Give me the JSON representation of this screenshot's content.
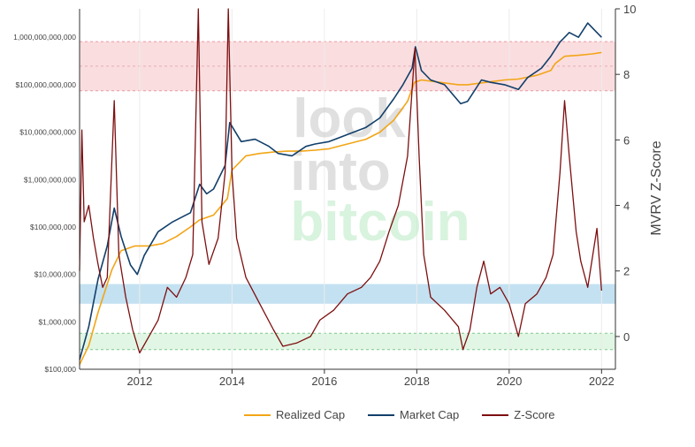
{
  "chart_data": {
    "type": "line",
    "title": "",
    "watermark": "look into bitcoin",
    "x_ticks": [
      "2012",
      "2014",
      "2016",
      "2018",
      "2020",
      "2022"
    ],
    "y_left_ticks": [
      "$100,000",
      "$1,000,000",
      "$10,000,000",
      "$100,000,000",
      "$1,000,000,000",
      "$10,000,000,000",
      "$100,000,000,000",
      "1,000,000,000,000"
    ],
    "y_right_ticks": [
      "0",
      "2",
      "4",
      "6",
      "8",
      "10"
    ],
    "y_right_label": "MVRV Z-Score",
    "x_range": [
      2010.7,
      2022.3
    ],
    "y_left_log_range": [
      5,
      12.6
    ],
    "y_right_range": [
      -1,
      10
    ],
    "bands": [
      {
        "name": "top",
        "range": [
          7.5,
          9.0
        ],
        "color": "#f9d7d9"
      },
      {
        "name": "middle",
        "range": [
          1.0,
          1.6
        ],
        "color": "#b9dcee"
      },
      {
        "name": "bottom",
        "range": [
          -0.4,
          0.1
        ],
        "color": "#dcf5df"
      }
    ],
    "series": [
      {
        "name": "Realized Cap",
        "axis": "left",
        "color": "#f2a516",
        "x": [
          2010.7,
          2010.9,
          2011.1,
          2011.4,
          2011.6,
          2011.9,
          2012.2,
          2012.5,
          2012.8,
          2013.1,
          2013.3,
          2013.6,
          2013.9,
          2014.0,
          2014.3,
          2014.6,
          2014.9,
          2015.2,
          2015.5,
          2015.8,
          2016.1,
          2016.5,
          2016.9,
          2017.2,
          2017.5,
          2017.8,
          2017.95,
          2018.1,
          2018.5,
          2018.9,
          2019.1,
          2019.5,
          2019.9,
          2020.2,
          2020.6,
          2020.9,
          2021.0,
          2021.2,
          2021.5,
          2021.8,
          2022.0
        ],
        "y": [
          5.1,
          5.5,
          6.2,
          7.1,
          7.5,
          7.6,
          7.6,
          7.65,
          7.8,
          8.0,
          8.15,
          8.25,
          8.6,
          9.2,
          9.5,
          9.55,
          9.58,
          9.6,
          9.6,
          9.62,
          9.65,
          9.75,
          9.85,
          10.0,
          10.25,
          10.65,
          11.05,
          11.1,
          11.05,
          11.0,
          11.0,
          11.05,
          11.1,
          11.12,
          11.2,
          11.3,
          11.45,
          11.6,
          11.62,
          11.65,
          11.68
        ]
      },
      {
        "name": "Market Cap",
        "axis": "left",
        "color": "#123f6a",
        "x": [
          2010.7,
          2010.9,
          2011.1,
          2011.3,
          2011.45,
          2011.6,
          2011.8,
          2011.95,
          2012.1,
          2012.4,
          2012.7,
          2012.9,
          2013.1,
          2013.3,
          2013.45,
          2013.6,
          2013.85,
          2013.95,
          2014.2,
          2014.5,
          2014.8,
          2015.0,
          2015.3,
          2015.6,
          2015.8,
          2016.1,
          2016.5,
          2016.9,
          2017.2,
          2017.5,
          2017.7,
          2017.9,
          2017.97,
          2018.1,
          2018.3,
          2018.6,
          2018.95,
          2019.1,
          2019.4,
          2019.6,
          2019.9,
          2020.2,
          2020.4,
          2020.7,
          2020.9,
          2021.1,
          2021.3,
          2021.5,
          2021.7,
          2021.85,
          2022.0
        ],
        "y": [
          5.2,
          5.9,
          6.9,
          7.6,
          8.4,
          7.8,
          7.2,
          7.0,
          7.4,
          7.9,
          8.1,
          8.2,
          8.3,
          8.9,
          8.7,
          8.8,
          9.3,
          10.2,
          9.8,
          9.85,
          9.7,
          9.55,
          9.5,
          9.7,
          9.75,
          9.8,
          9.95,
          10.1,
          10.3,
          10.7,
          11.0,
          11.35,
          11.8,
          11.3,
          11.1,
          11.0,
          10.6,
          10.65,
          11.1,
          11.05,
          11.0,
          10.9,
          11.15,
          11.35,
          11.6,
          11.9,
          12.1,
          12.0,
          12.3,
          12.15,
          12.0
        ]
      },
      {
        "name": "Z-Score",
        "axis": "right",
        "color": "#7d0f10",
        "x": [
          2010.7,
          2010.75,
          2010.8,
          2010.9,
          2011.0,
          2011.1,
          2011.2,
          2011.3,
          2011.45,
          2011.55,
          2011.7,
          2011.85,
          2012.0,
          2012.2,
          2012.4,
          2012.6,
          2012.8,
          2013.0,
          2013.15,
          2013.27,
          2013.35,
          2013.5,
          2013.7,
          2013.85,
          2013.92,
          2014.0,
          2014.1,
          2014.3,
          2014.6,
          2014.9,
          2015.1,
          2015.4,
          2015.7,
          2015.9,
          2016.2,
          2016.5,
          2016.8,
          2017.0,
          2017.2,
          2017.4,
          2017.6,
          2017.8,
          2017.96,
          2018.05,
          2018.15,
          2018.3,
          2018.6,
          2018.9,
          2019.0,
          2019.15,
          2019.3,
          2019.45,
          2019.6,
          2019.8,
          2020.0,
          2020.2,
          2020.35,
          2020.6,
          2020.8,
          2020.95,
          2021.1,
          2021.2,
          2021.3,
          2021.45,
          2021.55,
          2021.7,
          2021.8,
          2021.9,
          2022.0
        ],
        "y": [
          2.0,
          6.3,
          3.5,
          4.0,
          3.0,
          2.2,
          1.5,
          1.8,
          7.2,
          2.5,
          1.2,
          0.2,
          -0.5,
          0.0,
          0.5,
          1.5,
          1.2,
          1.8,
          2.5,
          10.0,
          3.5,
          2.2,
          3.0,
          5.0,
          10.0,
          5.0,
          3.0,
          1.8,
          1.0,
          0.2,
          -0.3,
          -0.2,
          0.0,
          0.5,
          0.8,
          1.3,
          1.5,
          1.8,
          2.3,
          3.2,
          4.0,
          5.5,
          8.8,
          5.5,
          2.5,
          1.2,
          0.8,
          0.3,
          -0.4,
          0.2,
          1.5,
          2.3,
          1.3,
          1.5,
          1.0,
          0.0,
          1.0,
          1.3,
          1.8,
          2.5,
          5.0,
          7.2,
          5.5,
          3.2,
          2.3,
          1.5,
          2.4,
          3.3,
          1.4
        ]
      }
    ]
  },
  "legend": {
    "items": [
      {
        "label": "Realized Cap",
        "color": "#f2a516"
      },
      {
        "label": "Market Cap",
        "color": "#123f6a"
      },
      {
        "label": "Z-Score",
        "color": "#7d0f10"
      }
    ]
  }
}
